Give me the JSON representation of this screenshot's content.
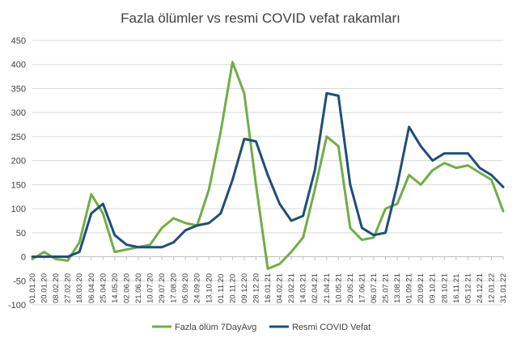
{
  "chart_data": {
    "type": "line",
    "title": "Fazla ölümler vs resmi COVID vefat rakamları",
    "xlabel": "",
    "ylabel": "",
    "ylim": [
      -100,
      450
    ],
    "yticks": [
      -100,
      -50,
      0,
      50,
      100,
      150,
      200,
      250,
      300,
      350,
      400,
      450
    ],
    "grid": true,
    "legend_position": "bottom",
    "x_tick_labels": [
      "01.01.2020",
      "20.01.2020",
      "08.02.2020",
      "27.02.2020",
      "18.03.2020",
      "06.04.2020",
      "25.04.2020",
      "14.05.2020",
      "02.06.2020",
      "21.06.2020",
      "10.07.2020",
      "29.07.2020",
      "17.08.2020",
      "05.09.2020",
      "24.09.2020",
      "13.10.2020",
      "01.11.2020",
      "20.11.2020",
      "09.12.2020",
      "28.12.2020",
      "16.01.2021",
      "04.02.2021",
      "23.02.2021",
      "14.03.2021",
      "02.04.2021",
      "21.04.2021",
      "10.05.2021",
      "29.05.2021",
      "17.06.2021",
      "06.07.2021",
      "25.07.2021",
      "13.08.2021",
      "01.09.2021",
      "20.09.2021",
      "09.10.2021",
      "28.10.2021",
      "16.11.2021",
      "05.12.2021",
      "24.12.2021",
      "12.01.2022",
      "31.01.2022"
    ],
    "x_tick_display": [
      "01.01.20",
      "20.01.20",
      "08.02.20",
      "27.02.20",
      "18.03.20",
      "06.04.20",
      "25.04.20",
      "14.05.20",
      "02.06.20",
      "21.06.20",
      "10.07.20",
      "29.07.20",
      "17.08.20",
      "05.09.20",
      "24.09.20",
      "13.10.20",
      "01.11.20",
      "20.11.20",
      "09.12.20",
      "28.12.20",
      "16.01.21",
      "04.02.21",
      "23.02.21",
      "14.03.21",
      "02.04.21",
      "21.04.21",
      "10.05.21",
      "29.05.21",
      "17.06.21",
      "06.07.21",
      "25.07.21",
      "13.08.21",
      "01.09.21",
      "20.09.21",
      "09.10.21",
      "28.10.21",
      "16.11.21",
      "05.12.21",
      "24.12.21",
      "12.01.22",
      "31.01.22"
    ],
    "x_tick_shown": [
      "01.01.20",
      "20.01.20",
      "08.02.20",
      "27.02.20",
      "18.03.20",
      "06.04.20",
      "25.04.20",
      "14.05.20",
      "02.06.20",
      "21.06.20",
      "10.07.20",
      "29.07.20",
      "17.08.20",
      "05.09.20",
      "24.09.20",
      "13.10.20",
      "01.11.20",
      "20.11.20",
      "09.12.20",
      "28.12.20",
      "16.01.21",
      "04.02.21",
      "23.02.21",
      "14.03.21",
      "02.04.21",
      "21.04.21",
      "10.05.21",
      "29.05.21",
      "17.06.21",
      "06.07.21",
      "25.07.21",
      "13.08.21",
      "01.09.21",
      "20.09.21",
      "09.10.21",
      "28.10.21",
      "16.11.21",
      "05.12.21",
      "24.12.21",
      "12.01.22",
      "31.01.22"
    ],
    "x": [
      "2020-01-01",
      "2020-01-20",
      "2020-02-08",
      "2020-02-27",
      "2020-03-18",
      "2020-04-06",
      "2020-04-25",
      "2020-05-14",
      "2020-06-02",
      "2020-06-21",
      "2020-07-10",
      "2020-07-29",
      "2020-08-17",
      "2020-09-05",
      "2020-09-24",
      "2020-10-13",
      "2020-11-01",
      "2020-11-20",
      "2020-12-09",
      "2020-12-28",
      "2021-01-16",
      "2021-02-04",
      "2021-02-23",
      "2021-03-14",
      "2021-04-02",
      "2021-04-21",
      "2021-05-10",
      "2021-05-29",
      "2021-06-17",
      "2021-07-06",
      "2021-07-25",
      "2021-08-13",
      "2021-09-01",
      "2021-09-20",
      "2021-10-09",
      "2021-10-28",
      "2021-11-16",
      "2021-12-05",
      "2021-12-24",
      "2022-01-12",
      "2022-01-31"
    ],
    "series": [
      {
        "name": "Fazla ölüm 7DayAvg",
        "color": "#70ad47",
        "values": [
          -5,
          10,
          -5,
          -8,
          30,
          130,
          90,
          10,
          15,
          20,
          25,
          60,
          80,
          70,
          65,
          140,
          260,
          405,
          340,
          150,
          -25,
          -15,
          10,
          40,
          140,
          250,
          230,
          60,
          35,
          40,
          100,
          110,
          170,
          150,
          180,
          195,
          185,
          190,
          175,
          160,
          95
        ]
      },
      {
        "name": "Resmi COVID Vefat",
        "color": "#1f4e79",
        "values": [
          0,
          0,
          0,
          0,
          10,
          90,
          110,
          45,
          25,
          20,
          20,
          20,
          30,
          55,
          65,
          70,
          90,
          160,
          245,
          240,
          170,
          110,
          75,
          85,
          180,
          340,
          335,
          150,
          60,
          45,
          50,
          150,
          270,
          230,
          200,
          215,
          215,
          215,
          185,
          170,
          145
        ]
      }
    ]
  }
}
